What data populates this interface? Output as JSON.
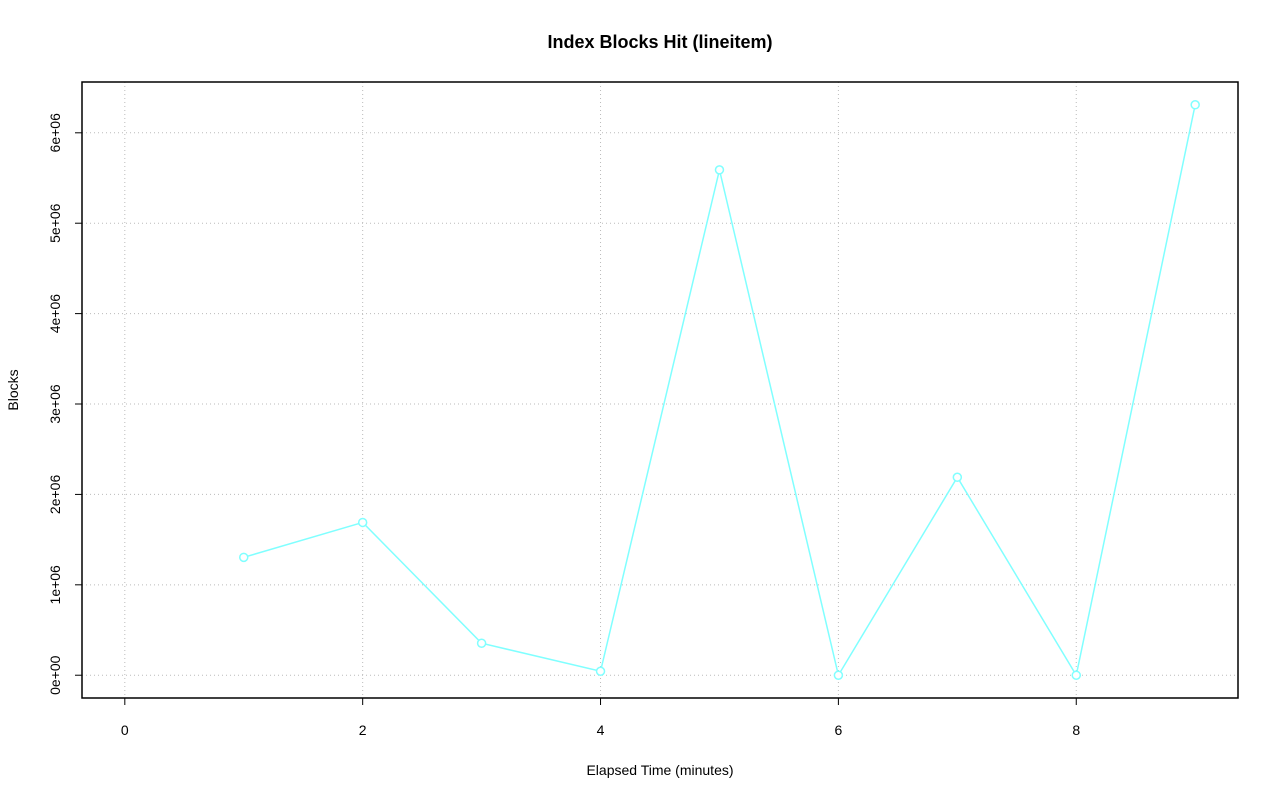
{
  "chart_data": {
    "type": "line",
    "title": "Index Blocks Hit (lineitem)",
    "x_label": "Elapsed Time (minutes)",
    "y_label": "Blocks",
    "x": [
      1,
      2,
      3,
      4,
      5,
      6,
      7,
      8,
      9
    ],
    "values": [
      1304000,
      1690000,
      354000,
      44000,
      5590000,
      0,
      2190000,
      0,
      6310000
    ],
    "color": "#80ffff",
    "xlim": [
      -0.36,
      9.36
    ],
    "xticks": [
      0,
      2,
      4,
      6,
      8
    ],
    "ylim": [
      -252000,
      6562000
    ],
    "yticks": [
      {
        "value": 0,
        "label": "0e+00"
      },
      {
        "value": 1000000,
        "label": "1e+06"
      },
      {
        "value": 2000000,
        "label": "2e+06"
      },
      {
        "value": 3000000,
        "label": "3e+06"
      },
      {
        "value": 4000000,
        "label": "4e+06"
      },
      {
        "value": 5000000,
        "label": "5e+06"
      },
      {
        "value": 6000000,
        "label": "6e+06"
      }
    ],
    "grid": true
  }
}
